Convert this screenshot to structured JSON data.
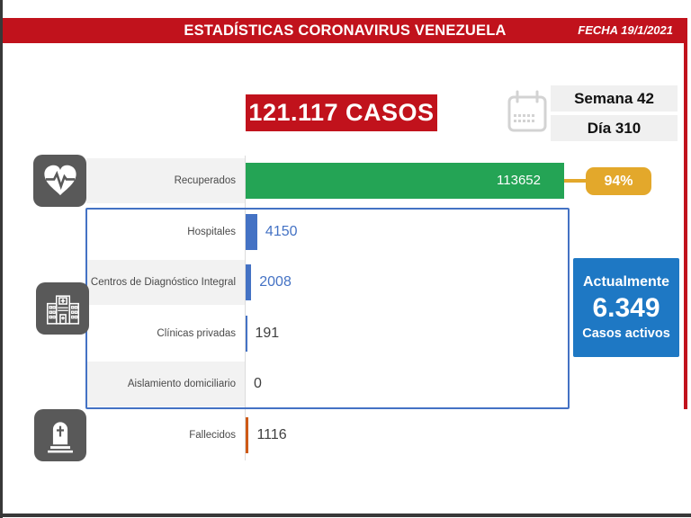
{
  "header": {
    "title": "ESTADÍSTICAS CORONAVIRUS VENEZUELA",
    "date_label": "FECHA 19/1/2021"
  },
  "summary": {
    "total_cases": "121.117 CASOS",
    "week_label": "Semana 42",
    "day_label": "Día 310"
  },
  "active_cases": {
    "heading": "Actualmente",
    "value": "6.349",
    "caption": "Casos activos"
  },
  "chart_data": {
    "type": "bar",
    "orientation": "horizontal",
    "categories": [
      "Recuperados",
      "Hospitales",
      "Centros de Diagnóstico Integral",
      "Clínicas privadas",
      "Aislamiento domiciliario",
      "Fallecidos"
    ],
    "values": [
      113652,
      4150,
      2008,
      191,
      0,
      1116
    ],
    "value_labels": [
      "113652",
      "4150",
      "2008",
      "191",
      "0",
      "1116"
    ],
    "bar_colors": [
      "#24A455",
      "#4472C4",
      "#4472C4",
      "#4472C4",
      "#4472C4",
      "#CE5A17"
    ],
    "value_label_colors": [
      "#FFFFFF",
      "#4472C4",
      "#4472C4",
      "#3F3F3F",
      "#3F3F3F",
      "#3F3F3F"
    ],
    "recovered_percent": "94%",
    "xlim": [
      0,
      115600
    ],
    "grid": false,
    "legend": false,
    "value_labels_shown": true
  },
  "icons": {
    "date": "calendar-icon",
    "recovered": "heart-pulse-icon",
    "in_treatment": "hospital-building-icon",
    "deceased": "tombstone-icon"
  },
  "colors": {
    "accent_red": "#C1121C",
    "recovered_green": "#24A455",
    "percent_gold": "#E3A82B",
    "bar_blue": "#4472C4",
    "active_blue": "#1E78C4",
    "icon_gray": "#595959",
    "band_gray": "#F2F2F2"
  }
}
